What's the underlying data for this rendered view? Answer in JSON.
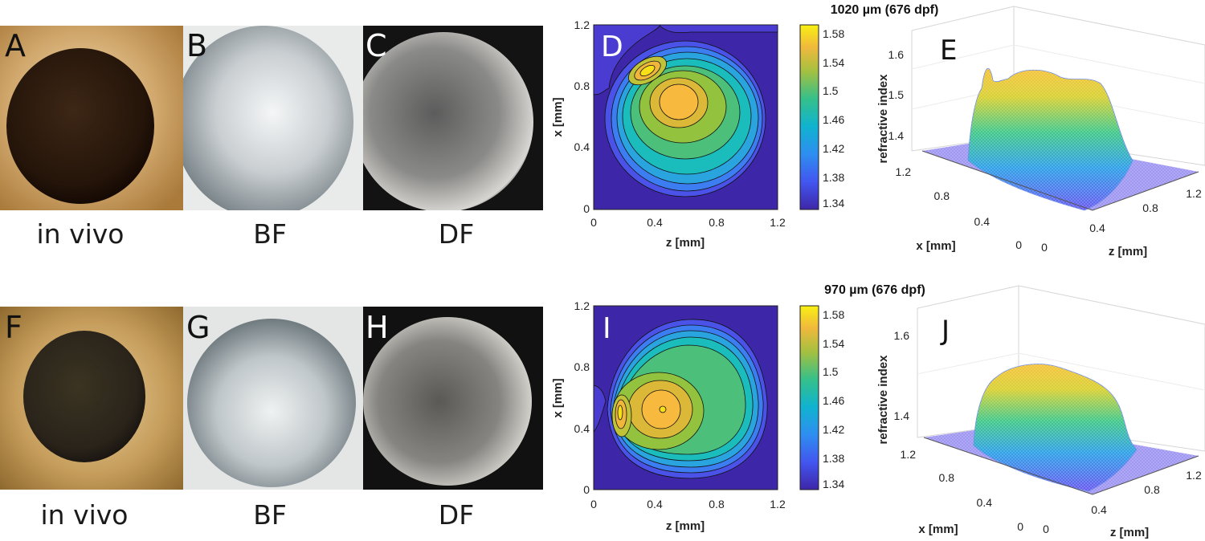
{
  "rows": [
    {
      "photos": [
        {
          "letter": "A",
          "caption": "in vivo",
          "letter_color": "#111111"
        },
        {
          "letter": "B",
          "caption": "BF",
          "letter_color": "#111111"
        },
        {
          "letter": "C",
          "caption": "DF",
          "letter_color": "#ffffff"
        }
      ],
      "contour": {
        "letter": "D",
        "letter_color": "#ffffff",
        "xlabel": "z [mm]",
        "ylabel": "x [mm]",
        "xticks": [
          "0",
          "0.4",
          "0.8",
          "1.2"
        ],
        "yticks": [
          "0",
          "0.4",
          "0.8",
          "1.2"
        ]
      },
      "colorbar": {
        "title": "1020 µm (676 dpf)",
        "ticks": [
          "1.58",
          "1.54",
          "1.5",
          "1.46",
          "1.42",
          "1.38",
          "1.34"
        ]
      },
      "surface": {
        "letter": "E",
        "zlabel": "refractive index",
        "xlabel": "x [mm]",
        "ylabel": "z [mm]",
        "zticks": [
          "1.6",
          "1.5",
          "1.4"
        ],
        "xticks": [
          "1.2",
          "0.8",
          "0.4",
          "0"
        ],
        "yticks": [
          "0",
          "0.4",
          "0.8",
          "1.2"
        ]
      }
    },
    {
      "photos": [
        {
          "letter": "F",
          "caption": "in vivo",
          "letter_color": "#111111"
        },
        {
          "letter": "G",
          "caption": "BF",
          "letter_color": "#111111"
        },
        {
          "letter": "H",
          "caption": "DF",
          "letter_color": "#ffffff"
        }
      ],
      "contour": {
        "letter": "I",
        "letter_color": "#ffffff",
        "xlabel": "z [mm]",
        "ylabel": "x [mm]",
        "xticks": [
          "0",
          "0.4",
          "0.8",
          "1.2"
        ],
        "yticks": [
          "0",
          "0.4",
          "0.8",
          "1.2"
        ]
      },
      "colorbar": {
        "title": "970 µm (676 dpf)",
        "ticks": [
          "1.58",
          "1.54",
          "1.5",
          "1.46",
          "1.42",
          "1.38",
          "1.34"
        ]
      },
      "surface": {
        "letter": "J",
        "zlabel": "refractive index",
        "xlabel": "x [mm]",
        "ylabel": "z [mm]",
        "zticks": [
          "1.6",
          "1.4"
        ],
        "xticks": [
          "1.2",
          "0.8",
          "0.4",
          "0"
        ],
        "yticks": [
          "0",
          "0.4",
          "0.8",
          "1.2"
        ]
      }
    }
  ],
  "colors": {
    "parula_low": "#3e26a8",
    "parula_mid": "#35b779",
    "parula_high": "#f9fb0e"
  }
}
